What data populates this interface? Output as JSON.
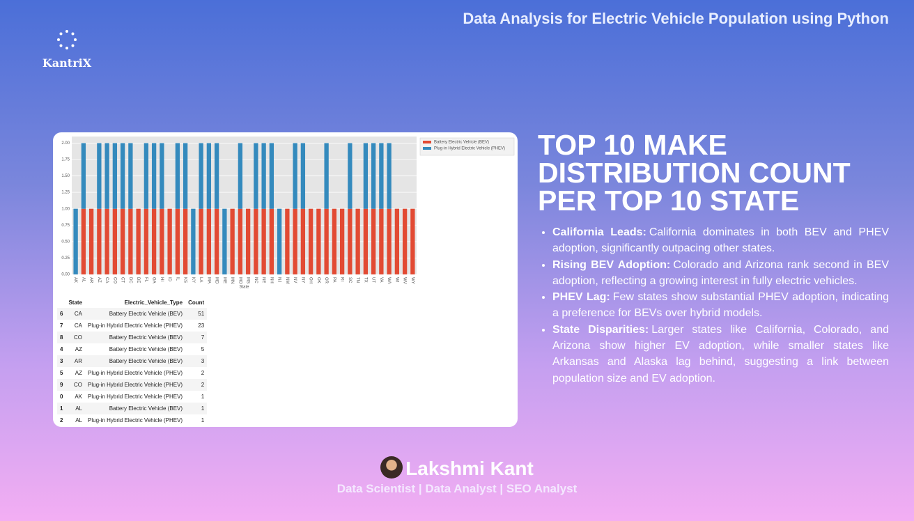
{
  "header": {
    "title": "Data Analysis for Electric Vehicle Population using Python",
    "logo": "KantriX"
  },
  "chart_data": {
    "type": "bar",
    "stacked": true,
    "categories": [
      "AK",
      "AL",
      "AR",
      "AZ",
      "CA",
      "CO",
      "CT",
      "DC",
      "DE",
      "FL",
      "GA",
      "HI",
      "ID",
      "IL",
      "KS",
      "KY",
      "LA",
      "MA",
      "MD",
      "ME",
      "MN",
      "MO",
      "MS",
      "NC",
      "NE",
      "NH",
      "NJ",
      "NM",
      "NV",
      "NY",
      "OH",
      "OK",
      "OR",
      "PA",
      "RI",
      "SC",
      "TN",
      "TX",
      "UT",
      "VA",
      "WA",
      "WI",
      "WV",
      "WY"
    ],
    "series": [
      {
        "name": "Battery Electric Vehicle (BEV)",
        "color": "#e24a33",
        "values": [
          0,
          1,
          1,
          1,
          1,
          1,
          1,
          1,
          1,
          1,
          1,
          1,
          1,
          1,
          1,
          0,
          1,
          1,
          1,
          0,
          1,
          1,
          1,
          1,
          1,
          1,
          0,
          1,
          1,
          1,
          1,
          1,
          1,
          1,
          1,
          1,
          1,
          1,
          1,
          1,
          1,
          1,
          1,
          1
        ]
      },
      {
        "name": "Plug-in Hybrid Electric Vehicle (PHEV)",
        "color": "#348abd",
        "values": [
          1,
          1,
          0,
          1,
          1,
          1,
          1,
          1,
          0,
          1,
          1,
          1,
          0,
          1,
          1,
          1,
          1,
          1,
          1,
          1,
          0,
          1,
          0,
          1,
          1,
          1,
          1,
          0,
          1,
          1,
          0,
          0,
          1,
          0,
          0,
          1,
          0,
          1,
          1,
          1,
          1,
          0,
          0,
          0
        ]
      }
    ],
    "xlabel": "State",
    "ylim": [
      0,
      2.1
    ],
    "yticks": [
      {
        "value": 0,
        "label": "0.00"
      },
      {
        "value": 0.25,
        "label": "0.25"
      },
      {
        "value": 0.5,
        "label": "0.50"
      },
      {
        "value": 0.75,
        "label": "0.75"
      },
      {
        "value": 1,
        "label": "1.00"
      },
      {
        "value": 1.25,
        "label": "1.25"
      },
      {
        "value": 1.5,
        "label": "1.50"
      },
      {
        "value": 1.75,
        "label": "1.75"
      },
      {
        "value": 2,
        "label": "2.00"
      }
    ],
    "grid": true,
    "legend": "upper right"
  },
  "table": {
    "columns": [
      "State",
      "Electric_Vehicle_Type",
      "Count"
    ],
    "rows": [
      [
        "6",
        "CA",
        "Battery Electric Vehicle (BEV)",
        "51"
      ],
      [
        "7",
        "CA",
        "Plug-in Hybrid Electric Vehicle (PHEV)",
        "23"
      ],
      [
        "8",
        "CO",
        "Battery Electric Vehicle (BEV)",
        "7"
      ],
      [
        "4",
        "AZ",
        "Battery Electric Vehicle (BEV)",
        "5"
      ],
      [
        "3",
        "AR",
        "Battery Electric Vehicle (BEV)",
        "3"
      ],
      [
        "5",
        "AZ",
        "Plug-in Hybrid Electric Vehicle (PHEV)",
        "2"
      ],
      [
        "9",
        "CO",
        "Plug-in Hybrid Electric Vehicle (PHEV)",
        "2"
      ],
      [
        "0",
        "AK",
        "Plug-in Hybrid Electric Vehicle (PHEV)",
        "1"
      ],
      [
        "1",
        "AL",
        "Battery Electric Vehicle (BEV)",
        "1"
      ],
      [
        "2",
        "AL",
        "Plug-in Hybrid Electric Vehicle (PHEV)",
        "1"
      ]
    ]
  },
  "content": {
    "heading": "TOP 10 MAKE DISTRIBUTION COUNT PER TOP 10 STATE",
    "bullets": [
      {
        "label": "California Leads:",
        "text": "California dominates in both BEV and PHEV adoption, significantly outpacing other states."
      },
      {
        "label": "Rising BEV Adoption:",
        "text": "Colorado and Arizona rank second in BEV adoption, reflecting a growing interest in fully electric vehicles."
      },
      {
        "label": "PHEV Lag:",
        "text": "Few states show substantial PHEV adoption, indicating a preference for BEVs over hybrid models."
      },
      {
        "label": "State Disparities:",
        "text": "Larger states like California, Colorado, and Arizona show higher EV adoption, while smaller states like Arkansas and Alaska lag behind, suggesting a link between population size and EV adoption."
      }
    ]
  },
  "footer": {
    "name": "Lakshmi Kant",
    "roles": "Data Scientist | Data Analyst | SEO Analyst"
  }
}
